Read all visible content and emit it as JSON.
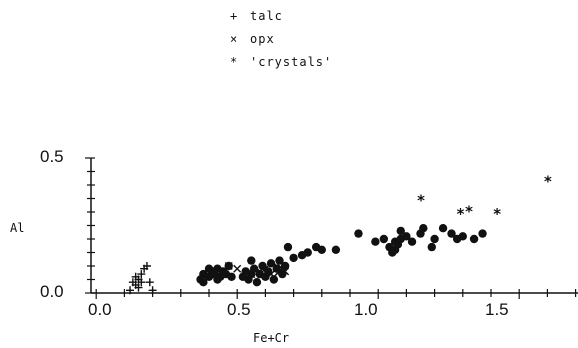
{
  "chart_data": {
    "type": "scatter",
    "title": "",
    "xlabel": "Fe+Cr",
    "ylabel": "Al",
    "xlim": [
      -0.02,
      1.75
    ],
    "ylim": [
      0.0,
      0.5
    ],
    "x_ticks": [
      "0.0",
      "0.5",
      "1.0",
      "1.5"
    ],
    "y_ticks": [
      "0.0",
      "0.5"
    ],
    "legend": {
      "placement": "top-center",
      "entries": [
        {
          "marker": "+",
          "label": "talc"
        },
        {
          "marker": "×",
          "label": "opx"
        },
        {
          "marker": "*",
          "label": "'crystals'"
        }
      ]
    },
    "series": [
      {
        "name": "talc",
        "marker": "+",
        "points": [
          [
            0.12,
            0.01
          ],
          [
            0.14,
            0.03
          ],
          [
            0.15,
            0.05
          ],
          [
            0.16,
            0.07
          ],
          [
            0.17,
            0.09
          ],
          [
            0.18,
            0.1
          ],
          [
            0.14,
            0.06
          ],
          [
            0.16,
            0.04
          ],
          [
            0.19,
            0.04
          ],
          [
            0.15,
            0.02
          ],
          [
            0.2,
            0.01
          ],
          [
            0.13,
            0.04
          ]
        ]
      },
      {
        "name": "opx",
        "marker": "x",
        "points": [
          [
            0.45,
            0.08
          ],
          [
            0.47,
            0.1
          ],
          [
            0.5,
            0.09
          ],
          [
            0.55,
            0.07
          ],
          [
            0.6,
            0.09
          ],
          [
            0.62,
            0.07
          ],
          [
            0.64,
            0.1
          ],
          [
            0.65,
            0.08
          ],
          [
            0.66,
            0.09
          ],
          [
            0.67,
            0.08
          ],
          [
            0.63,
            0.06
          ],
          [
            0.58,
            0.08
          ]
        ]
      },
      {
        "name": "'crystals'",
        "marker": "*",
        "points": [
          [
            1.15,
            0.35
          ],
          [
            1.29,
            0.3
          ],
          [
            1.32,
            0.31
          ],
          [
            1.42,
            0.3
          ],
          [
            1.6,
            0.42
          ]
        ]
      },
      {
        "name": "",
        "marker": "dot",
        "points": [
          [
            0.37,
            0.05
          ],
          [
            0.38,
            0.07
          ],
          [
            0.4,
            0.06
          ],
          [
            0.41,
            0.08
          ],
          [
            0.42,
            0.07
          ],
          [
            0.43,
            0.09
          ],
          [
            0.44,
            0.06
          ],
          [
            0.45,
            0.08
          ],
          [
            0.46,
            0.07
          ],
          [
            0.47,
            0.1
          ],
          [
            0.48,
            0.06
          ],
          [
            0.43,
            0.05
          ],
          [
            0.4,
            0.09
          ],
          [
            0.38,
            0.04
          ],
          [
            0.52,
            0.06
          ],
          [
            0.53,
            0.08
          ],
          [
            0.54,
            0.05
          ],
          [
            0.55,
            0.07
          ],
          [
            0.55,
            0.12
          ],
          [
            0.56,
            0.09
          ],
          [
            0.57,
            0.04
          ],
          [
            0.58,
            0.07
          ],
          [
            0.59,
            0.1
          ],
          [
            0.6,
            0.06
          ],
          [
            0.61,
            0.08
          ],
          [
            0.62,
            0.11
          ],
          [
            0.63,
            0.05
          ],
          [
            0.64,
            0.09
          ],
          [
            0.65,
            0.12
          ],
          [
            0.66,
            0.07
          ],
          [
            0.67,
            0.1
          ],
          [
            0.68,
            0.17
          ],
          [
            0.7,
            0.13
          ],
          [
            0.73,
            0.14
          ],
          [
            0.75,
            0.15
          ],
          [
            0.78,
            0.17
          ],
          [
            0.8,
            0.16
          ],
          [
            0.85,
            0.16
          ],
          [
            0.93,
            0.22
          ],
          [
            0.99,
            0.19
          ],
          [
            1.02,
            0.2
          ],
          [
            1.04,
            0.17
          ],
          [
            1.05,
            0.15
          ],
          [
            1.06,
            0.19
          ],
          [
            1.07,
            0.18
          ],
          [
            1.08,
            0.23
          ],
          [
            1.08,
            0.2
          ],
          [
            1.1,
            0.21
          ],
          [
            1.12,
            0.19
          ],
          [
            1.15,
            0.22
          ],
          [
            1.16,
            0.24
          ],
          [
            1.19,
            0.17
          ],
          [
            1.2,
            0.2
          ],
          [
            1.23,
            0.24
          ],
          [
            1.26,
            0.22
          ],
          [
            1.28,
            0.2
          ],
          [
            1.3,
            0.21
          ],
          [
            1.34,
            0.2
          ],
          [
            1.37,
            0.22
          ],
          [
            1.06,
            0.16
          ]
        ]
      }
    ]
  }
}
